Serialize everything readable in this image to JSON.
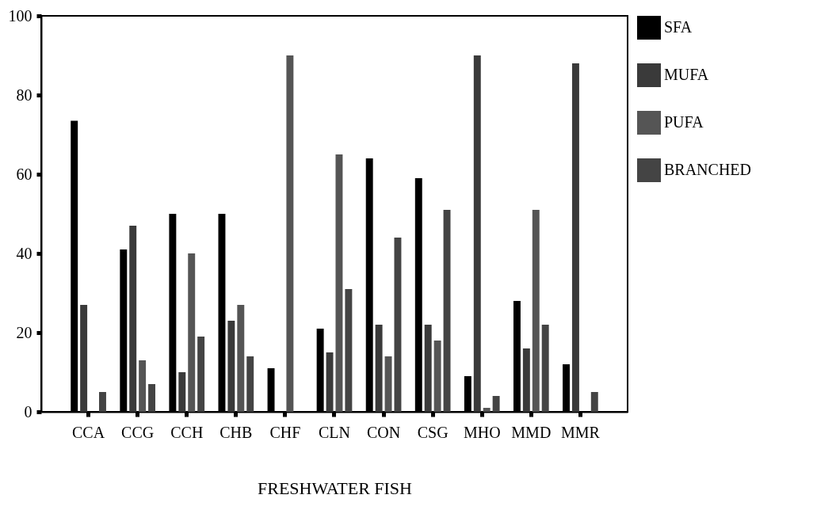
{
  "chart_data": {
    "type": "bar",
    "xlabel": "FRESHWATER FISH",
    "categories": [
      "CCA",
      "CCG",
      "CCH",
      "CHB",
      "CHF",
      "CLN",
      "CON",
      "CSG",
      "MHO",
      "MMD",
      "MMR"
    ],
    "series": [
      {
        "name": "SFA",
        "color": "#000000",
        "values": [
          73.5,
          41,
          50,
          50,
          11,
          21,
          64,
          59,
          9,
          28,
          12
        ]
      },
      {
        "name": "MUFA",
        "color": "#3a3a3a",
        "values": [
          27,
          47,
          10,
          23,
          null,
          15,
          22,
          22,
          90,
          16,
          88
        ]
      },
      {
        "name": "PUFA",
        "color": "#555555",
        "values": [
          null,
          13,
          40,
          27,
          90,
          65,
          14,
          18,
          1,
          51,
          null
        ]
      },
      {
        "name": "BRANCHED",
        "color": "#444444",
        "values": [
          5,
          7,
          19,
          14,
          null,
          31,
          44,
          51,
          4,
          22,
          5
        ]
      }
    ],
    "ylim": [
      0,
      100
    ],
    "yticks": [
      0,
      20,
      40,
      60,
      80,
      100
    ],
    "grid": false,
    "legend": "right"
  }
}
